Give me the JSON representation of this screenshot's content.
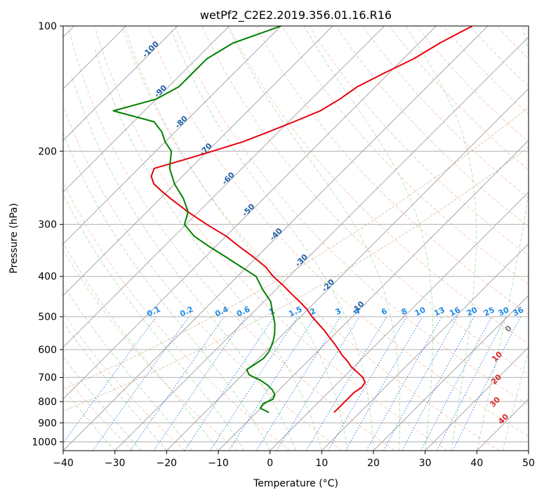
{
  "chart_data": {
    "type": "line",
    "title": "wetPf2_C2E2.2019.356.01.16.R16",
    "xlabel": "Temperature (°C)",
    "ylabel": "Pressure (hPa)",
    "xlim": [
      -40,
      50
    ],
    "ylim": [
      1050,
      100
    ],
    "x_ticks": [
      -40,
      -30,
      -20,
      -10,
      0,
      10,
      20,
      30,
      40,
      50
    ],
    "y_ticks": [
      100,
      200,
      300,
      400,
      500,
      600,
      700,
      800,
      900,
      1000
    ],
    "isotherm_labels": [
      {
        "value": "-100",
        "p": 115,
        "t": -100
      },
      {
        "value": "-90",
        "p": 145,
        "t": -90
      },
      {
        "value": "-80",
        "p": 172,
        "t": -80
      },
      {
        "value": "-70",
        "p": 200,
        "t": -70
      },
      {
        "value": "-60",
        "p": 235,
        "t": -60
      },
      {
        "value": "-50",
        "p": 280,
        "t": -50
      },
      {
        "value": "-40",
        "p": 320,
        "t": -40
      },
      {
        "value": "-30",
        "p": 370,
        "t": -30
      },
      {
        "value": "-20",
        "p": 425,
        "t": -20
      },
      {
        "value": "-10",
        "p": 480,
        "t": -10
      }
    ],
    "mixing_ratio_labels": [
      "0.1",
      "0.2",
      "0.4",
      "0.6",
      "1",
      "1.5",
      "2",
      "3",
      "4",
      "6",
      "8",
      "10",
      "13",
      "16",
      "20",
      "25",
      "30",
      "36"
    ],
    "moist_adiabat_labels": [
      {
        "value": "0",
        "p": 540,
        "t": 24
      },
      {
        "value": "10",
        "p": 630,
        "t": 29
      },
      {
        "value": "20",
        "p": 715,
        "t": 35
      },
      {
        "value": "30",
        "p": 810,
        "t": 41
      },
      {
        "value": "40",
        "p": 890,
        "t": 47.5
      }
    ],
    "series": [
      {
        "name": "Temperature",
        "color": "#e8000b",
        "p": [
          850,
          820,
          790,
          760,
          740,
          720,
          700,
          680,
          660,
          640,
          620,
          600,
          580,
          560,
          540,
          520,
          500,
          480,
          460,
          440,
          420,
          400,
          380,
          360,
          340,
          320,
          300,
          280,
          260,
          250,
          240,
          230,
          220,
          210,
          200,
          190,
          180,
          170,
          160,
          150,
          140,
          130,
          120,
          110,
          100
        ],
        "t": [
          5,
          5,
          5,
          5,
          5.5,
          5.2,
          3.8,
          1.7,
          -0.5,
          -2.3,
          -4.4,
          -6.3,
          -8.3,
          -10.5,
          -12.7,
          -15.2,
          -17.8,
          -20.2,
          -23.1,
          -26.3,
          -29.5,
          -33.1,
          -36.3,
          -40.5,
          -45.2,
          -50.0,
          -56.0,
          -62.0,
          -68.0,
          -71.0,
          -74.0,
          -76.0,
          -77.0,
          -73.0,
          -69.0,
          -65.0,
          -62.0,
          -59.0,
          -56.0,
          -54.5,
          -53.5,
          -51.0,
          -48.0,
          -46.0,
          -43.0
        ]
      },
      {
        "name": "Dewpoint",
        "color": "#008000",
        "p": [
          850,
          840,
          830,
          810,
          790,
          770,
          750,
          730,
          710,
          690,
          670,
          650,
          630,
          610,
          590,
          570,
          550,
          520,
          490,
          460,
          430,
          400,
          380,
          360,
          340,
          320,
          300,
          280,
          260,
          240,
          220,
          200,
          190,
          180,
          170,
          160,
          150,
          140,
          130,
          120,
          110,
          100
        ],
        "t": [
          -7.6,
          -8.8,
          -10.1,
          -10.4,
          -9.4,
          -9.9,
          -11.3,
          -13.2,
          -15.6,
          -18.7,
          -20.2,
          -19.6,
          -19.1,
          -19.3,
          -19.9,
          -20.7,
          -21.7,
          -23.6,
          -26.1,
          -28.7,
          -32.6,
          -36.4,
          -41.0,
          -45.8,
          -51.0,
          -56.2,
          -60.3,
          -62.0,
          -65.5,
          -70.0,
          -74.0,
          -77.0,
          -80.0,
          -82.5,
          -86.0,
          -96.0,
          -90.0,
          -88.0,
          -88.0,
          -88.0,
          -86.0,
          -80.0
        ]
      }
    ]
  }
}
